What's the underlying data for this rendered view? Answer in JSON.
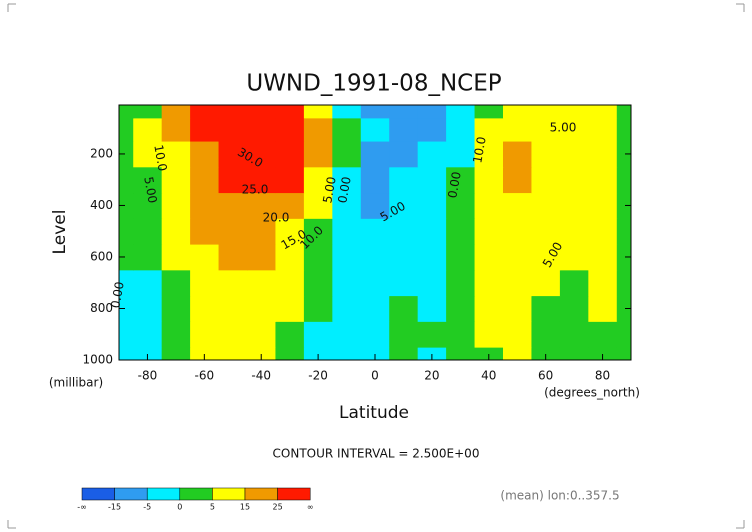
{
  "chart_data": {
    "type": "contour",
    "title": "UWND_1991-08_NCEP",
    "x_label": "Latitude",
    "y_label": "Level",
    "x_units": "(degrees_north)",
    "y_units": "(millibar)",
    "subtitle": "CONTOUR INTERVAL = 2.500E+00",
    "footnote": "(mean) lon:0..357.5",
    "x": [
      -90,
      -80,
      -70,
      -60,
      -50,
      -40,
      -30,
      -20,
      -10,
      0,
      10,
      20,
      30,
      40,
      50,
      60,
      70,
      80,
      90
    ],
    "y": [
      1000,
      900,
      800,
      700,
      600,
      500,
      400,
      300,
      200,
      100,
      20
    ],
    "z": [
      [
        -2,
        -2,
        1,
        6,
        6,
        5,
        3,
        -1,
        -5,
        -2,
        2,
        -1,
        1,
        4,
        5,
        4,
        4,
        3,
        2
      ],
      [
        -2,
        -2,
        2,
        7,
        8,
        6,
        3,
        -1,
        -5,
        -2,
        2,
        0,
        1,
        5,
        6,
        4,
        4,
        4,
        2
      ],
      [
        -1,
        -2,
        3,
        9,
        10,
        8,
        5,
        0,
        -4,
        -1,
        1,
        -1,
        1,
        7,
        7,
        4,
        3,
        5,
        2
      ],
      [
        -1,
        -1,
        4,
        11,
        13,
        11,
        6,
        1,
        -2,
        -1,
        -1,
        -2,
        0,
        7,
        8,
        6,
        3,
        6,
        2
      ],
      [
        0,
        2,
        6,
        13,
        17,
        15,
        9,
        1,
        -2,
        -2,
        -1,
        -2,
        0,
        8,
        10,
        8,
        5,
        6,
        3
      ],
      [
        2,
        3,
        9,
        16,
        20,
        20,
        14,
        3,
        -2,
        -3,
        -2,
        -2,
        0,
        9,
        11,
        10,
        8,
        6,
        3
      ],
      [
        2,
        4,
        10,
        18,
        22,
        23,
        19,
        6,
        -2,
        -6,
        -3,
        -2,
        0,
        10,
        13,
        11,
        9,
        6,
        3
      ],
      [
        2,
        4,
        11,
        20,
        25,
        26,
        25,
        10,
        -1,
        -6,
        -4,
        -3,
        0,
        10,
        16,
        12,
        9,
        6,
        3
      ],
      [
        2,
        5,
        12,
        22,
        27,
        27,
        29,
        15,
        0,
        -6,
        -6,
        -4,
        -1,
        8,
        18,
        12,
        8,
        6,
        3
      ],
      [
        2,
        5,
        15,
        27,
        30,
        28,
        26,
        18,
        2,
        -5,
        -8,
        -6,
        -2,
        5,
        8,
        7,
        7,
        6,
        3
      ],
      [
        3,
        4,
        20,
        30,
        30,
        30,
        25,
        10,
        -2,
        -8,
        -12,
        -6,
        -3,
        3,
        5,
        5,
        8,
        6,
        2
      ]
    ],
    "xlim": [
      -90,
      90
    ],
    "ylim": [
      1000,
      10
    ],
    "xticks": [
      -80,
      -60,
      -40,
      -20,
      0,
      20,
      40,
      60,
      80
    ],
    "yticks": [
      200,
      400,
      600,
      800,
      1000
    ],
    "levels": [
      -15,
      -5,
      0,
      5,
      15,
      25
    ],
    "colors": [
      "#1a5ee6",
      "#2f9cf0",
      "#00eeff",
      "#22cc22",
      "#ffff00",
      "#f09a00",
      "#ff1a00"
    ],
    "colorbar_end_labels": [
      "-∞",
      "∞"
    ],
    "contour_labels": [
      "10.0",
      "5.00",
      "30.0",
      "25.0",
      "20.0",
      "15.0",
      "10.0",
      "5.00",
      "0.00",
      "5.00",
      "0.00",
      "10.0",
      "5.00",
      "5.00",
      "0.00"
    ]
  }
}
